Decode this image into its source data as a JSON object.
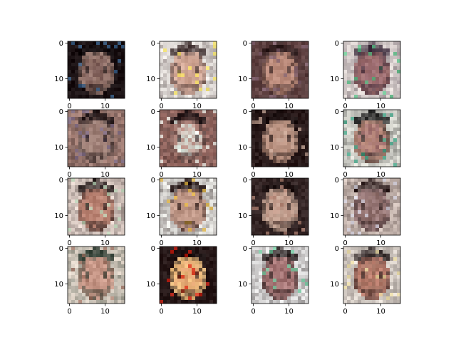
{
  "chart_data": {
    "type": "heatmap",
    "title": "",
    "xlabel": "",
    "ylabel": "",
    "grid": false,
    "layout": {
      "rows": 4,
      "cols": 4
    },
    "panels_count": 16,
    "image_size": [
      16,
      16
    ],
    "x_ticks": [
      0,
      10
    ],
    "y_ticks": [
      0,
      10
    ],
    "xlim": [
      -0.5,
      15.5
    ],
    "ylim": [
      15.5,
      -0.5
    ],
    "panel_descriptions_rgb": [
      {
        "bg": "#1c1214",
        "face": "#7a5a55",
        "hair": "#120c0e",
        "accent": "#3a6a9a",
        "skin": "#9a7a70"
      },
      {
        "bg": "#f0ece8",
        "face": "#c79a88",
        "hair": "#3a2a2a",
        "accent": "#f4e050",
        "skin": "#d8b0a0"
      },
      {
        "bg": "#6a4a4a",
        "face": "#c09080",
        "hair": "#2a1a1a",
        "accent": "#8a6a7a",
        "skin": "#b88878"
      },
      {
        "bg": "#e8e0dc",
        "face": "#9a6a70",
        "hair": "#3a2a3a",
        "accent": "#4ac080",
        "skin": "#a07070"
      },
      {
        "bg": "#b08a80",
        "face": "#9a7a72",
        "hair": "#1a1012",
        "accent": "#7a6a8a",
        "skin": "#a88a80"
      },
      {
        "bg": "#a07068",
        "face": "#e0f0e8",
        "hair": "#1a1012",
        "accent": "#f8fff8",
        "skin": "#b88a80"
      },
      {
        "bg": "#2a1a1a",
        "face": "#c09a8a",
        "hair": "#1a1010",
        "accent": "#c8a898",
        "skin": "#b8907e"
      },
      {
        "bg": "#e8e8e0",
        "face": "#a07070",
        "hair": "#1a1a1a",
        "accent": "#30a080",
        "skin": "#c09080"
      },
      {
        "bg": "#e8d8d0",
        "face": "#b07868",
        "hair": "#1a1010",
        "accent": "#c0e0c0",
        "skin": "#c08a7a"
      },
      {
        "bg": "#f0f0ec",
        "face": "#b89080",
        "hair": "#1a0a0a",
        "accent": "#f0c040",
        "skin": "#c8a090"
      },
      {
        "bg": "#3a2a2a",
        "face": "#c09888",
        "hair": "#1a1010",
        "accent": "#b08070",
        "skin": "#c0a090"
      },
      {
        "bg": "#d8c8c0",
        "face": "#8a6a66",
        "hair": "#2a1a1a",
        "accent": "#e0e0f0",
        "skin": "#a08080"
      },
      {
        "bg": "#e8dcd0",
        "face": "#c09080",
        "hair": "#1a2a20",
        "accent": "#a07060",
        "skin": "#d0a090"
      },
      {
        "bg": "#2a1a1a",
        "face": "#e0a070",
        "hair": "#1a1010",
        "accent": "#e02010",
        "skin": "#f0c080"
      },
      {
        "bg": "#f0f0f0",
        "face": "#9a6a6a",
        "hair": "#1a1010",
        "accent": "#6ad0a0",
        "skin": "#b08080"
      },
      {
        "bg": "#e8e0d8",
        "face": "#a07060",
        "hair": "#2a2020",
        "accent": "#f0e0a0",
        "skin": "#c08070"
      }
    ]
  }
}
